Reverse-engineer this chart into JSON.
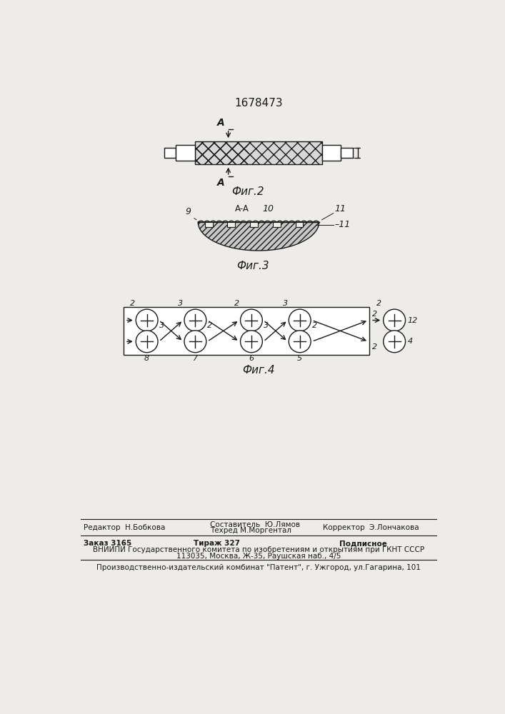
{
  "title_patent": "1678473",
  "fig2_label": "Фиг.2",
  "fig3_label": "Фиг.3",
  "fig4_label": "Фиг.4",
  "footer_line1_col1": "Редактор  Н.Бобкова",
  "footer_line1_col2a": "Составитель  Ю.Лямов",
  "footer_line1_col2b": "Техред М.Моргентал",
  "footer_line1_col3": "Корректор  Э.Лончакова",
  "footer_line2_col1": "Заказ 3165",
  "footer_line2_col2": "Тираж 327",
  "footer_line2_col3": "Подписное",
  "footer_line3": "ВНИИПИ Государственного комитета по изобретениям и открытиям при ГКНТ СССР",
  "footer_line4": "113035, Москва, Ж-35, Раушская наб., 4/5",
  "footer_line5": "Производственно-издательский комбинат \"Патент\", г. Ужгород, ул.Гагарина, 101",
  "bg_color": "#eeece8",
  "line_color": "#1a1a1a"
}
